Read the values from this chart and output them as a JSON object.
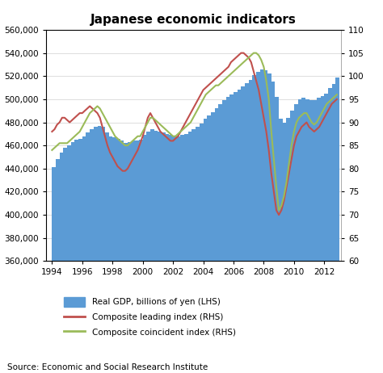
{
  "title": "Japanese economic indicators",
  "source": "Source: Economic and Social Research Institute",
  "gdp_years": [
    1994.0,
    1994.25,
    1994.5,
    1994.75,
    1995.0,
    1995.25,
    1995.5,
    1995.75,
    1996.0,
    1996.25,
    1996.5,
    1996.75,
    1997.0,
    1997.25,
    1997.5,
    1997.75,
    1998.0,
    1998.25,
    1998.5,
    1998.75,
    1999.0,
    1999.25,
    1999.5,
    1999.75,
    2000.0,
    2000.25,
    2000.5,
    2000.75,
    2001.0,
    2001.25,
    2001.5,
    2001.75,
    2002.0,
    2002.25,
    2002.5,
    2002.75,
    2003.0,
    2003.25,
    2003.5,
    2003.75,
    2004.0,
    2004.25,
    2004.5,
    2004.75,
    2005.0,
    2005.25,
    2005.5,
    2005.75,
    2006.0,
    2006.25,
    2006.5,
    2006.75,
    2007.0,
    2007.25,
    2007.5,
    2007.75,
    2008.0,
    2008.25,
    2008.5,
    2008.75,
    2009.0,
    2009.25,
    2009.5,
    2009.75,
    2010.0,
    2010.25,
    2010.5,
    2010.75,
    2011.0,
    2011.25,
    2011.5,
    2011.75,
    2012.0,
    2012.25,
    2012.5,
    2012.75
  ],
  "gdp_values": [
    441000,
    448000,
    454000,
    458000,
    460000,
    463000,
    465000,
    466000,
    468000,
    471000,
    474000,
    476000,
    477000,
    476000,
    471000,
    468000,
    467000,
    466000,
    464000,
    462000,
    463000,
    464000,
    464000,
    465000,
    469000,
    472000,
    474000,
    473000,
    472000,
    471000,
    470000,
    469000,
    468000,
    468000,
    469000,
    470000,
    472000,
    474000,
    476000,
    479000,
    483000,
    486000,
    489000,
    492000,
    496000,
    499000,
    502000,
    504000,
    506000,
    508000,
    511000,
    514000,
    517000,
    521000,
    524000,
    526000,
    525000,
    522000,
    515000,
    502000,
    483000,
    480000,
    484000,
    490000,
    496000,
    500000,
    501000,
    500000,
    499000,
    499000,
    501000,
    503000,
    505000,
    510000,
    513000,
    519000
  ],
  "index_years": [
    1994.0,
    1994.1667,
    1994.3333,
    1994.5,
    1994.6667,
    1994.8333,
    1995.0,
    1995.1667,
    1995.3333,
    1995.5,
    1995.6667,
    1995.8333,
    1996.0,
    1996.1667,
    1996.3333,
    1996.5,
    1996.6667,
    1996.8333,
    1997.0,
    1997.1667,
    1997.3333,
    1997.5,
    1997.6667,
    1997.8333,
    1998.0,
    1998.1667,
    1998.3333,
    1998.5,
    1998.6667,
    1998.8333,
    1999.0,
    1999.1667,
    1999.3333,
    1999.5,
    1999.6667,
    1999.8333,
    2000.0,
    2000.1667,
    2000.3333,
    2000.5,
    2000.6667,
    2000.8333,
    2001.0,
    2001.1667,
    2001.3333,
    2001.5,
    2001.6667,
    2001.8333,
    2002.0,
    2002.1667,
    2002.3333,
    2002.5,
    2002.6667,
    2002.8333,
    2003.0,
    2003.1667,
    2003.3333,
    2003.5,
    2003.6667,
    2003.8333,
    2004.0,
    2004.1667,
    2004.3333,
    2004.5,
    2004.6667,
    2004.8333,
    2005.0,
    2005.1667,
    2005.3333,
    2005.5,
    2005.6667,
    2005.8333,
    2006.0,
    2006.1667,
    2006.3333,
    2006.5,
    2006.6667,
    2006.8333,
    2007.0,
    2007.1667,
    2007.3333,
    2007.5,
    2007.6667,
    2007.8333,
    2008.0,
    2008.1667,
    2008.3333,
    2008.5,
    2008.6667,
    2008.8333,
    2009.0,
    2009.1667,
    2009.3333,
    2009.5,
    2009.6667,
    2009.8333,
    2010.0,
    2010.1667,
    2010.3333,
    2010.5,
    2010.6667,
    2010.8333,
    2011.0,
    2011.1667,
    2011.3333,
    2011.5,
    2011.6667,
    2011.8333,
    2012.0,
    2012.1667,
    2012.3333,
    2012.5,
    2012.6667,
    2012.8333
  ],
  "leading_values": [
    88.0,
    88.5,
    89.5,
    90.0,
    91.0,
    91.0,
    90.5,
    90.0,
    90.5,
    91.0,
    91.5,
    92.0,
    92.0,
    92.5,
    93.0,
    93.5,
    93.0,
    92.5,
    92.0,
    91.0,
    89.0,
    87.0,
    85.0,
    83.5,
    82.5,
    81.5,
    80.5,
    80.0,
    79.5,
    79.5,
    80.0,
    81.0,
    82.0,
    83.0,
    84.0,
    85.5,
    87.0,
    89.0,
    91.0,
    92.0,
    91.0,
    90.0,
    89.0,
    88.0,
    87.5,
    87.0,
    86.5,
    86.0,
    86.0,
    86.5,
    87.0,
    88.0,
    89.0,
    90.0,
    91.0,
    92.0,
    93.0,
    94.0,
    95.0,
    96.0,
    97.0,
    97.5,
    98.0,
    98.5,
    99.0,
    99.5,
    100.0,
    100.5,
    101.0,
    101.5,
    102.0,
    103.0,
    103.5,
    104.0,
    104.5,
    105.0,
    105.0,
    104.5,
    104.0,
    103.0,
    101.0,
    99.0,
    97.0,
    94.0,
    91.0,
    88.0,
    84.0,
    79.0,
    75.0,
    71.0,
    70.0,
    71.0,
    73.0,
    76.0,
    79.0,
    82.0,
    85.0,
    87.0,
    88.0,
    89.0,
    89.5,
    90.0,
    89.0,
    88.5,
    88.0,
    88.5,
    89.0,
    90.0,
    91.0,
    92.0,
    93.0,
    94.0,
    94.5,
    95.0
  ],
  "coincident_values": [
    84.0,
    84.5,
    85.0,
    85.5,
    85.5,
    85.5,
    85.5,
    86.0,
    86.5,
    87.0,
    87.5,
    88.0,
    89.0,
    90.0,
    91.0,
    92.0,
    92.5,
    93.0,
    93.5,
    93.0,
    92.0,
    91.0,
    90.0,
    89.0,
    88.0,
    87.0,
    86.5,
    86.0,
    85.5,
    85.0,
    85.0,
    85.5,
    86.0,
    86.5,
    87.0,
    87.0,
    88.0,
    89.0,
    90.0,
    91.0,
    91.0,
    90.5,
    90.0,
    89.5,
    89.0,
    88.5,
    88.0,
    87.5,
    87.0,
    87.0,
    87.5,
    88.0,
    88.5,
    89.0,
    89.5,
    90.0,
    91.0,
    92.0,
    93.0,
    94.0,
    95.0,
    96.0,
    96.5,
    97.0,
    97.5,
    98.0,
    98.0,
    98.5,
    99.0,
    99.5,
    100.0,
    100.5,
    101.0,
    101.5,
    102.0,
    102.5,
    103.0,
    103.5,
    104.0,
    104.5,
    105.0,
    105.0,
    104.5,
    103.5,
    102.0,
    99.0,
    95.0,
    88.0,
    82.0,
    76.0,
    71.0,
    72.0,
    74.0,
    77.0,
    81.0,
    85.0,
    88.0,
    90.0,
    91.0,
    91.5,
    92.0,
    92.0,
    91.0,
    90.0,
    89.5,
    90.0,
    91.0,
    92.0,
    93.0,
    94.0,
    94.5,
    95.0,
    95.5,
    96.0
  ],
  "gdp_color": "#5b9bd5",
  "leading_color": "#c0504d",
  "coincident_color": "#9bbb59",
  "ylim_left": [
    360000,
    560000
  ],
  "ylim_right": [
    60,
    110
  ],
  "yticks_left": [
    360000,
    380000,
    400000,
    420000,
    440000,
    460000,
    480000,
    500000,
    520000,
    540000,
    560000
  ],
  "yticks_right": [
    60,
    65,
    70,
    75,
    80,
    85,
    90,
    95,
    100,
    105,
    110
  ],
  "xticks": [
    1994,
    1996,
    1998,
    2000,
    2002,
    2004,
    2006,
    2008,
    2010,
    2012
  ],
  "xlim": [
    1993.6,
    2013.1
  ],
  "title_fontsize": 11,
  "source_fontsize": 7.5,
  "tick_fontsize": 7.5,
  "legend_fontsize": 7.5
}
